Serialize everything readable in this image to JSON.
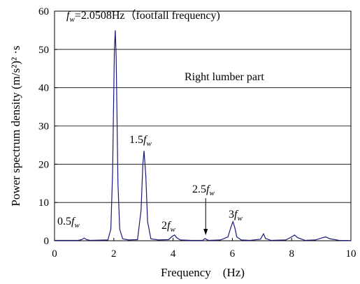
{
  "chart_data": {
    "type": "line",
    "title": "",
    "xlabel": "Frequency　(Hz)",
    "ylabel": "Power spectrum density  (m/s²)² ·s",
    "xlim": [
      0,
      10
    ],
    "ylim": [
      0,
      60
    ],
    "x_ticks": [
      "0",
      "2",
      "4",
      "6",
      "8",
      "10"
    ],
    "y_ticks": [
      "0",
      "10",
      "20",
      "30",
      "40",
      "50",
      "60"
    ],
    "grid": "horizontal",
    "line_color": "#1a1a7a",
    "series": [
      {
        "name": "",
        "x": [
          0.0,
          0.8,
          0.92,
          1.0,
          1.08,
          1.2,
          1.8,
          1.9,
          1.96,
          2.02,
          2.05,
          2.08,
          2.14,
          2.2,
          2.3,
          2.5,
          2.8,
          2.92,
          2.98,
          3.02,
          3.08,
          3.14,
          3.25,
          3.5,
          3.85,
          3.98,
          4.05,
          4.12,
          4.25,
          4.6,
          5.0,
          5.08,
          5.13,
          5.2,
          5.6,
          5.85,
          5.95,
          6.02,
          6.08,
          6.15,
          6.3,
          6.6,
          6.95,
          7.05,
          7.12,
          7.3,
          7.8,
          8.0,
          8.1,
          8.2,
          8.45,
          8.8,
          9.05,
          9.15,
          9.3,
          9.6,
          10.0
        ],
        "y": [
          0.1,
          0.1,
          0.3,
          0.7,
          0.3,
          0.1,
          0.2,
          3.0,
          18.0,
          50.0,
          55.0,
          48.0,
          15.0,
          3.0,
          0.5,
          0.2,
          0.3,
          8.0,
          20.0,
          23.5,
          17.0,
          5.0,
          0.5,
          0.2,
          0.3,
          1.2,
          1.5,
          0.8,
          0.2,
          0.1,
          0.1,
          0.6,
          0.3,
          0.1,
          0.2,
          1.0,
          3.5,
          5.0,
          3.5,
          1.0,
          0.2,
          0.1,
          0.4,
          1.8,
          0.6,
          0.1,
          0.2,
          1.0,
          1.5,
          0.8,
          0.1,
          0.2,
          0.8,
          1.0,
          0.5,
          0.1,
          0.05
        ]
      }
    ],
    "annotations": {
      "fw_main": {
        "base": "f",
        "sub": "w",
        "rest": "=2.0508Hz（footfall frequency)"
      },
      "panel": "Right lumber part",
      "h15": {
        "prefix": "1.5",
        "base": "f",
        "sub": "w"
      },
      "h05": {
        "prefix": "0.5",
        "base": "f",
        "sub": "w"
      },
      "h2": {
        "prefix": "2",
        "base": "f",
        "sub": "w"
      },
      "h25": {
        "prefix": "2.5",
        "base": "f",
        "sub": "w"
      },
      "h3": {
        "prefix": "3",
        "base": "f",
        "sub": "w"
      }
    },
    "arrow_at_x": 5.1
  }
}
